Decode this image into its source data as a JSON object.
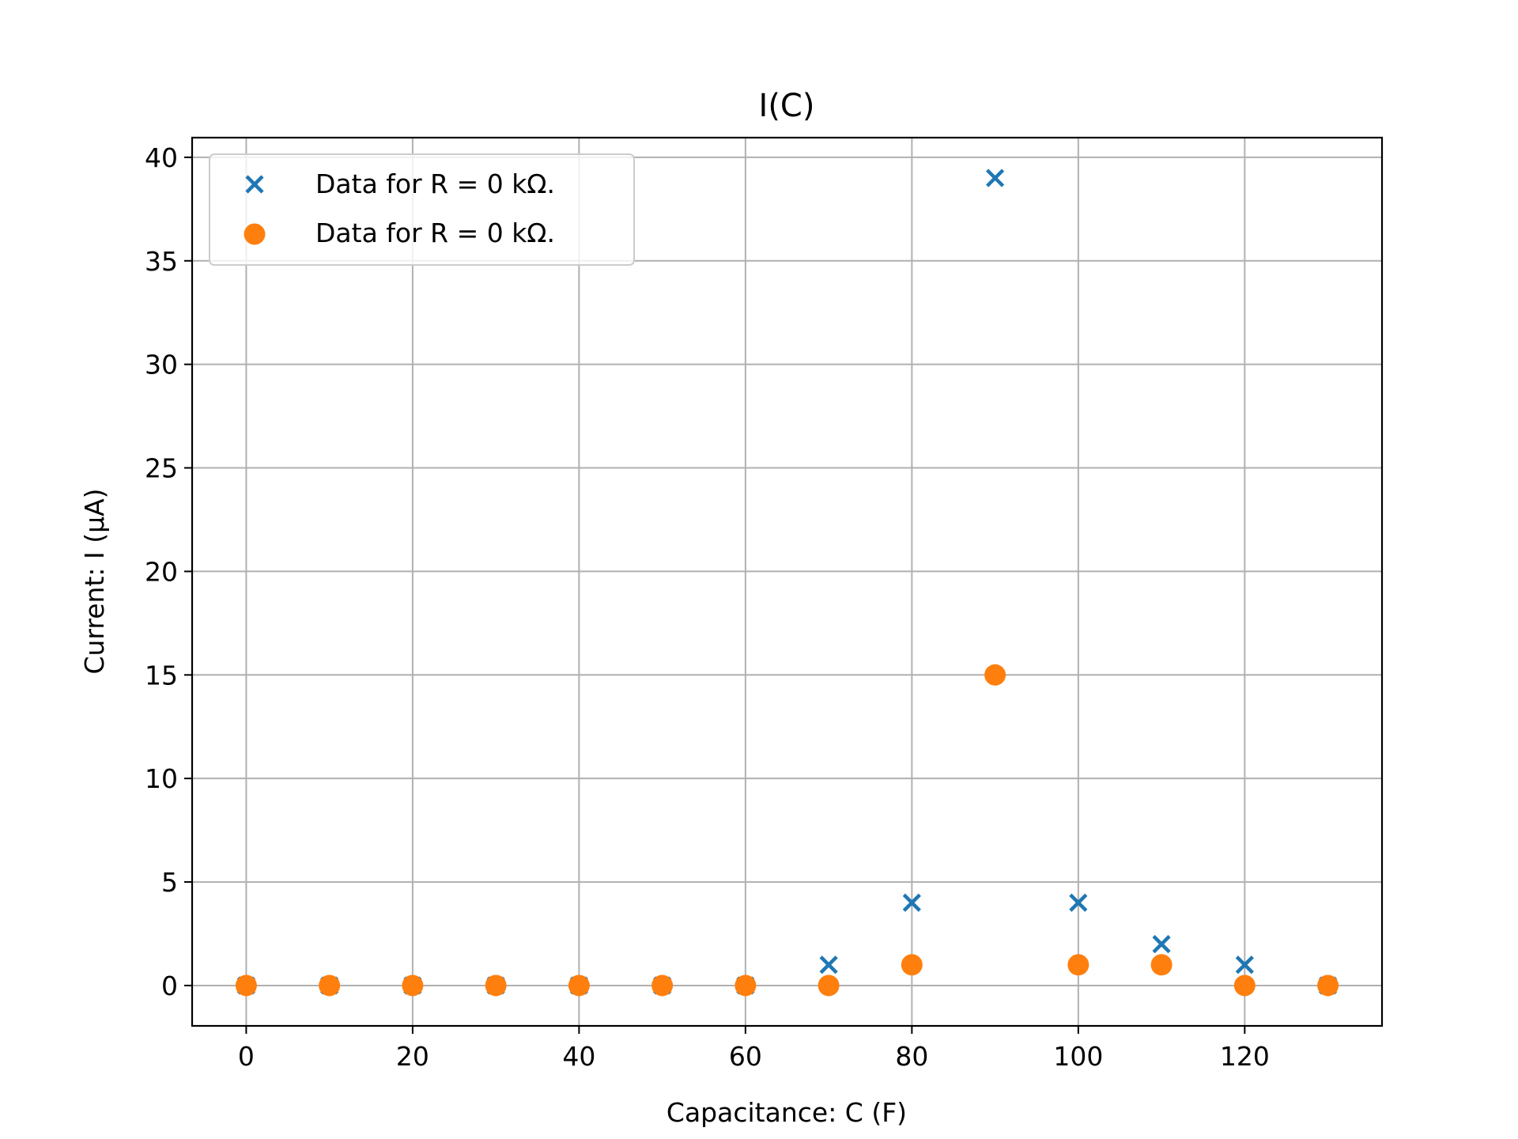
{
  "chart_data": {
    "type": "scatter",
    "title": "I(C)",
    "xlabel": "Capacitance: C (F)",
    "ylabel": "Current: I (µA)",
    "xlim": [
      -6.5,
      136.5
    ],
    "ylim": [
      -1.95,
      40.95
    ],
    "xticks": [
      0,
      20,
      40,
      60,
      80,
      100,
      120
    ],
    "yticks": [
      0,
      5,
      10,
      15,
      20,
      25,
      30,
      35,
      40
    ],
    "grid": true,
    "legend_position": "upper-left",
    "series": [
      {
        "name": "Data for R = 0 kΩ.",
        "marker": "x",
        "color": "#1f77b4",
        "x": [
          0,
          10,
          20,
          30,
          40,
          50,
          60,
          70,
          80,
          90,
          100,
          110,
          120,
          130
        ],
        "y": [
          0,
          0,
          0,
          0,
          0,
          0,
          0,
          1,
          4,
          39,
          4,
          2,
          1,
          0
        ]
      },
      {
        "name": "Data for R = 0 kΩ.",
        "marker": "circle",
        "color": "#ff7f0e",
        "x": [
          0,
          10,
          20,
          30,
          40,
          50,
          60,
          70,
          80,
          90,
          100,
          110,
          120,
          130
        ],
        "y": [
          0,
          0,
          0,
          0,
          0,
          0,
          0,
          0,
          1,
          15,
          1,
          1,
          0,
          0
        ]
      }
    ]
  }
}
